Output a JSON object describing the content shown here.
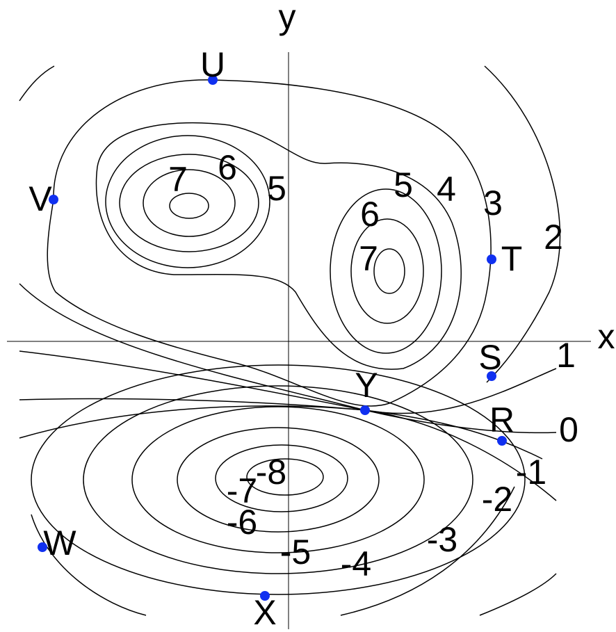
{
  "axes": {
    "x": "x",
    "y": "y"
  },
  "points": [
    "U",
    "V",
    "T",
    "S",
    "Y",
    "R",
    "W",
    "X"
  ],
  "contour_labels": [
    "7",
    "6",
    "5",
    "5",
    "4",
    "3",
    "2",
    "6",
    "7",
    "1",
    "0",
    "-1",
    "-2",
    "-3",
    "-4",
    "-5",
    "-6",
    "-7",
    "-8"
  ]
}
